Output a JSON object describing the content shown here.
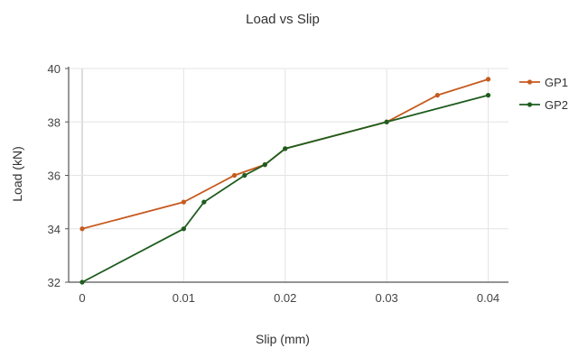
{
  "chart_data": {
    "type": "line",
    "title": "Load vs Slip",
    "xlabel": "Slip (mm)",
    "ylabel": "Load (kN)",
    "xlim": [
      0,
      0.042
    ],
    "ylim": [
      32,
      40
    ],
    "xticks": [
      "0",
      "0.01",
      "0.02",
      "0.03",
      "0.04"
    ],
    "yticks": [
      "32",
      "34",
      "36",
      "38",
      "40"
    ],
    "grid": "vertical",
    "legend": "right",
    "series": [
      {
        "name": "GP1",
        "color": "#c65a1e",
        "x": [
          0,
          0.01,
          0.015,
          0.018,
          0.02,
          0.03,
          0.035,
          0.04
        ],
        "y": [
          34.0,
          35.0,
          36.0,
          36.4,
          37.0,
          38.0,
          39.0,
          39.6
        ]
      },
      {
        "name": "GP2",
        "color": "#1e5c1e",
        "x": [
          0,
          0.01,
          0.012,
          0.016,
          0.018,
          0.02,
          0.03,
          0.04
        ],
        "y": [
          32.0,
          34.0,
          35.0,
          36.0,
          36.4,
          37.0,
          38.0,
          39.0
        ]
      }
    ]
  }
}
